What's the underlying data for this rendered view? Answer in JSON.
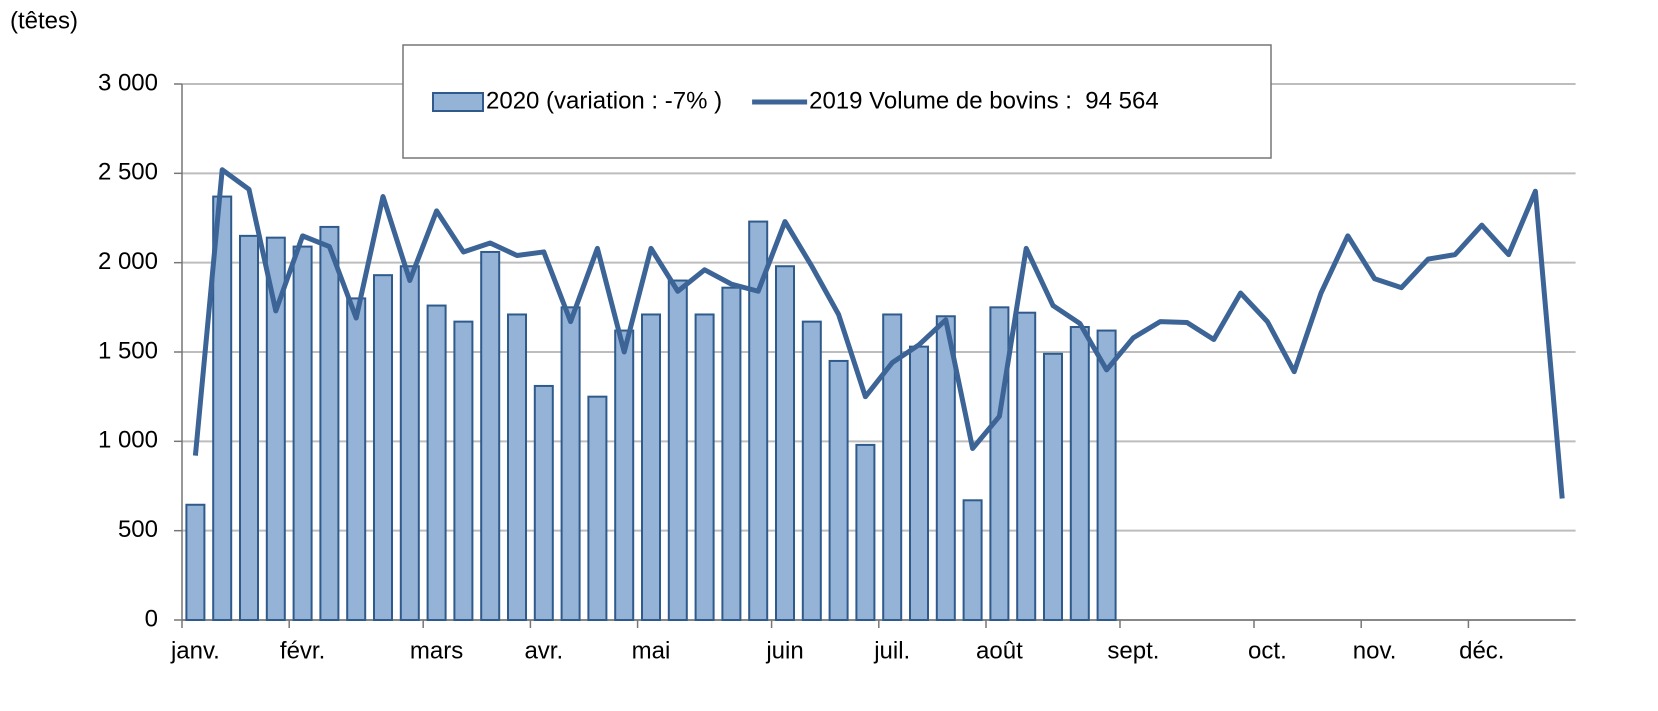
{
  "chart_data": {
    "type": "bar",
    "y_axis_label": "(têtes)",
    "categories": [
      "janv.",
      null,
      null,
      null,
      "févr.",
      null,
      null,
      null,
      null,
      "mars",
      null,
      null,
      null,
      "avr.",
      null,
      null,
      null,
      "mai",
      null,
      null,
      null,
      null,
      "juin",
      null,
      null,
      null,
      "juil.",
      null,
      null,
      null,
      "août",
      null,
      null,
      null,
      null,
      "sept.",
      null,
      null,
      null,
      null,
      "oct.",
      null,
      null,
      null,
      "nov.",
      null,
      null,
      null,
      "déc.",
      null,
      null,
      null
    ],
    "series": [
      {
        "name": "2020 (variation : -7% )",
        "type": "bar",
        "color": "#95b3d7",
        "edge_color": "#2f5a8c",
        "values": [
          645,
          2370,
          2150,
          2140,
          2090,
          2200,
          1800,
          1930,
          1980,
          1760,
          1670,
          2060,
          1710,
          1310,
          1750,
          1250,
          1620,
          1710,
          1900,
          1710,
          1860,
          2230,
          1980,
          1670,
          1450,
          980,
          1710,
          1530,
          1700,
          670,
          1750,
          1720,
          1490,
          1640,
          1620,
          null,
          null,
          null,
          null,
          null,
          null,
          null,
          null,
          null,
          null,
          null,
          null,
          null,
          null,
          null,
          null,
          null
        ]
      },
      {
        "name": "2019 Volume de bovins :  94 564",
        "type": "line",
        "color": "#3c6496",
        "values": [
          920,
          2520,
          2410,
          1730,
          2150,
          2090,
          1690,
          2370,
          1900,
          2290,
          2060,
          2110,
          2040,
          2060,
          1670,
          2080,
          1500,
          2080,
          1840,
          1960,
          1880,
          1840,
          2230,
          1980,
          1710,
          1250,
          1440,
          1540,
          1680,
          960,
          1140,
          2080,
          1760,
          1660,
          1400,
          1580,
          1670,
          1665,
          1570,
          1830,
          1670,
          1390,
          1830,
          2150,
          1910,
          1860,
          2020,
          2045,
          2210,
          2045,
          2400,
          680
        ]
      }
    ],
    "ylim": [
      0,
      3000
    ],
    "yticks": [
      0,
      500,
      {
        "value": 1000,
        "label": "1 000"
      },
      {
        "value": 1500,
        "label": "1 500"
      },
      {
        "value": 2000,
        "label": "2 000"
      },
      {
        "value": 2500,
        "label": "2 500"
      },
      {
        "value": 3000,
        "label": "3 000"
      }
    ],
    "grid": true,
    "legend": "top"
  }
}
